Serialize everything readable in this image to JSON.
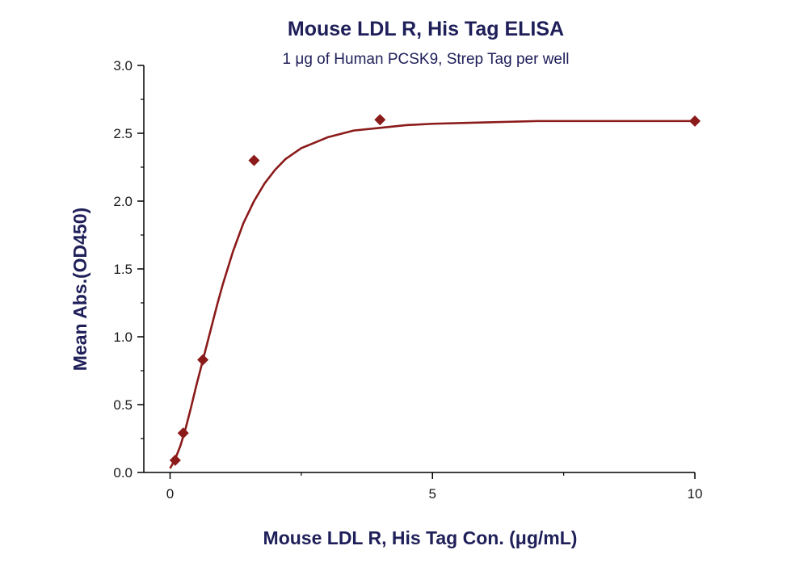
{
  "chart_data": {
    "type": "scatter",
    "title": "Mouse LDL R, His Tag ELISA",
    "subtitle": "1 μg of Human PCSK9, Strep Tag per well",
    "xlabel": "Mouse LDL R, His Tag Con. (μg/mL)",
    "ylabel": "Mean Abs.(OD450)",
    "xlim": [
      -0.5,
      10
    ],
    "ylim": [
      0,
      3.0
    ],
    "x_ticks": [
      0,
      5,
      10
    ],
    "x_tick_labels": [
      "0",
      "5",
      "10"
    ],
    "y_ticks": [
      0.0,
      0.5,
      1.0,
      1.5,
      2.0,
      2.5,
      3.0
    ],
    "y_tick_labels": [
      "0.0",
      "0.5",
      "1.0",
      "1.5",
      "2.0",
      "2.5",
      "3.0"
    ],
    "grid": false,
    "legend": false,
    "colors": {
      "text": "#1f1f5a",
      "series": "#8b1a1a",
      "axis": "#000000"
    },
    "series": [
      {
        "marker": "diamond",
        "points": [
          {
            "x": 0.098,
            "y": 0.09
          },
          {
            "x": 0.25,
            "y": 0.29
          },
          {
            "x": 0.625,
            "y": 0.83
          },
          {
            "x": 1.6,
            "y": 2.3
          },
          {
            "x": 4.0,
            "y": 2.6
          },
          {
            "x": 10.0,
            "y": 2.59
          }
        ],
        "fit_curve": {
          "x": [
            0.0,
            0.1,
            0.2,
            0.3,
            0.4,
            0.5,
            0.6,
            0.7,
            0.8,
            0.9,
            1.0,
            1.2,
            1.4,
            1.6,
            1.8,
            2.0,
            2.2,
            2.5,
            3.0,
            3.5,
            4.0,
            4.5,
            5.0,
            6.0,
            7.0,
            8.0,
            9.0,
            10.0
          ],
          "y": [
            0.03,
            0.1,
            0.2,
            0.33,
            0.48,
            0.64,
            0.79,
            0.94,
            1.09,
            1.24,
            1.38,
            1.63,
            1.84,
            2.0,
            2.13,
            2.23,
            2.31,
            2.39,
            2.47,
            2.52,
            2.54,
            2.56,
            2.57,
            2.58,
            2.59,
            2.59,
            2.59,
            2.59
          ]
        }
      }
    ]
  }
}
